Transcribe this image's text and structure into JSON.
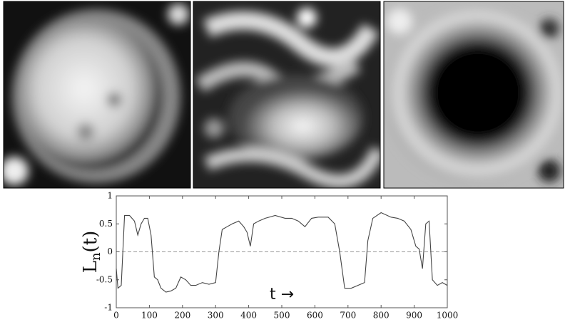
{
  "chart_data": {
    "type": "line",
    "ylabel": {
      "base": "L",
      "sub": "n",
      "rest": "(t)"
    },
    "annotation": "t →",
    "x": [
      0,
      5,
      15,
      25,
      40,
      55,
      65,
      75,
      85,
      95,
      105,
      115,
      125,
      135,
      150,
      165,
      180,
      195,
      210,
      225,
      240,
      260,
      280,
      300,
      310,
      320,
      335,
      350,
      370,
      385,
      395,
      405,
      415,
      430,
      450,
      480,
      510,
      530,
      550,
      570,
      590,
      610,
      640,
      660,
      675,
      690,
      710,
      730,
      750,
      760,
      775,
      800,
      830,
      850,
      870,
      890,
      905,
      915,
      925,
      935,
      945,
      955,
      970,
      985,
      1000
    ],
    "series": [
      {
        "color": "#444444",
        "values": [
          -0.3,
          -0.65,
          -0.6,
          0.65,
          0.65,
          0.55,
          0.3,
          0.5,
          0.6,
          0.6,
          0.3,
          -0.45,
          -0.5,
          -0.65,
          -0.72,
          -0.7,
          -0.65,
          -0.45,
          -0.5,
          -0.6,
          -0.6,
          -0.55,
          -0.58,
          -0.55,
          0,
          0.4,
          0.45,
          0.5,
          0.55,
          0.45,
          0.35,
          0.1,
          0.5,
          0.55,
          0.6,
          0.65,
          0.6,
          0.6,
          0.55,
          0.45,
          0.6,
          0.62,
          0.62,
          0.5,
          0,
          -0.65,
          -0.65,
          -0.6,
          -0.55,
          0.2,
          0.6,
          0.7,
          0.62,
          0.6,
          0.55,
          0.4,
          0.1,
          0.05,
          -0.3,
          0.5,
          0.55,
          -0.5,
          -0.6,
          -0.55,
          -0.6
        ]
      }
    ],
    "xlim": [
      0,
      1000
    ],
    "xticks": [
      0,
      100,
      200,
      300,
      400,
      500,
      600,
      700,
      800,
      900,
      1000
    ],
    "ylim": [
      -1,
      1
    ],
    "yticks": [
      -1,
      -0.5,
      0,
      0.5,
      1
    ],
    "zero_line": true
  }
}
